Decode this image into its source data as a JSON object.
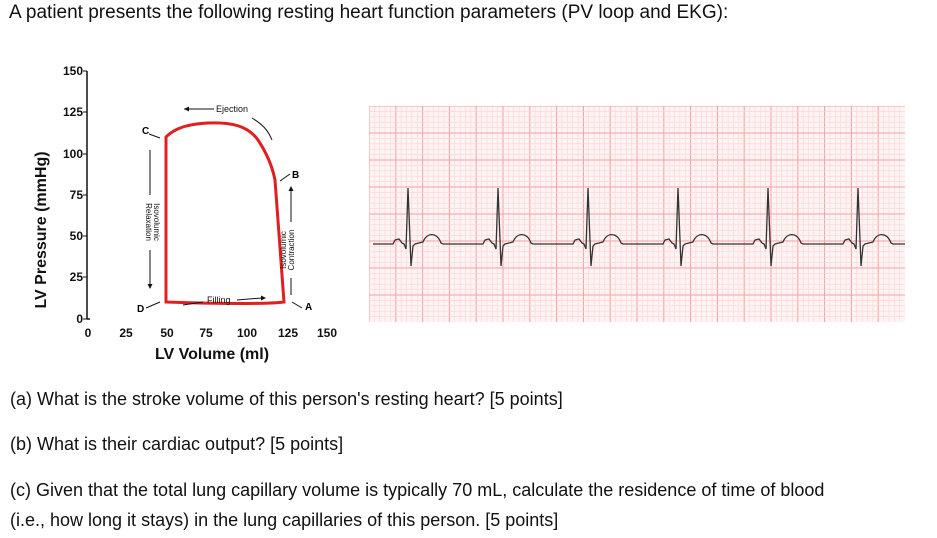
{
  "intro": "A patient presents the following resting heart function parameters (PV loop and EKG):",
  "questions": {
    "a": "(a) What is the stroke volume of this person's resting heart?  [5 points]",
    "b": "(b) What is their cardiac output?  [5 points]",
    "c_line1": "(c) Given that the total lung capillary volume is typically 70 mL, calculate the residence of time of blood",
    "c_line2": "(i.e., how long it stays) in the lung capillaries of this person.  [5 points]"
  },
  "pv_loop": {
    "xlabel": "LV Volume (ml)",
    "ylabel": "LV Pressure (mmHg)",
    "x_ticks": [
      "0",
      "25",
      "50",
      "75",
      "100",
      "125",
      "150"
    ],
    "y_ticks": [
      "0",
      "25",
      "50",
      "75",
      "100",
      "125",
      "150"
    ],
    "point_labels": {
      "a": "A",
      "b": "B",
      "c": "C",
      "d": "D"
    },
    "phase_labels": {
      "ejection": "Ejection",
      "filling": "Filling",
      "iso_contraction_1": "Isovolumic",
      "iso_contraction_2": "Contraction",
      "iso_relaxation_1": "Isovolumic",
      "iso_relaxation_2": "Relaxation"
    },
    "loop_color": "#e02020"
  },
  "ekg": {
    "beats": 6,
    "grid_color": "#f4a0a0",
    "grid_minor_color": "#fbd5d5",
    "trace_color": "#333333"
  }
}
